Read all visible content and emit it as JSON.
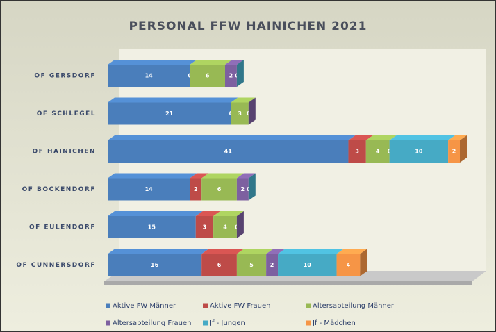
{
  "chart_data": {
    "type": "bar",
    "orientation": "horizontal",
    "stacked": true,
    "title": "PERSONAL FFW HAINICHEN 2021",
    "categories": [
      "OF GERSDORF",
      "OF SCHLEGEL",
      "OF HAINICHEN",
      "OF BOCKENDORF",
      "OF EULENDORF",
      "OF CUNNERSDORF"
    ],
    "series": [
      {
        "name": "Aktive FW Männer",
        "color": "#4a7ebb",
        "values": [
          14,
          21,
          41,
          14,
          15,
          16
        ]
      },
      {
        "name": "Aktive FW Frauen",
        "color": "#be4b48",
        "values": [
          0,
          0,
          3,
          2,
          3,
          6
        ]
      },
      {
        "name": "Altersabteilung Männer",
        "color": "#98b954",
        "values": [
          6,
          3,
          4,
          6,
          4,
          5
        ]
      },
      {
        "name": "Altersabteilung Frauen",
        "color": "#7d60a0",
        "values": [
          2,
          0,
          0,
          2,
          0,
          2
        ]
      },
      {
        "name": "Jf - Jungen",
        "color": "#46aac5",
        "values": [
          0,
          null,
          10,
          0,
          null,
          10
        ]
      },
      {
        "name": "Jf - Mädchen",
        "color": "#f69546",
        "values": [
          null,
          null,
          2,
          null,
          null,
          4
        ]
      }
    ],
    "legend": "bottom"
  }
}
